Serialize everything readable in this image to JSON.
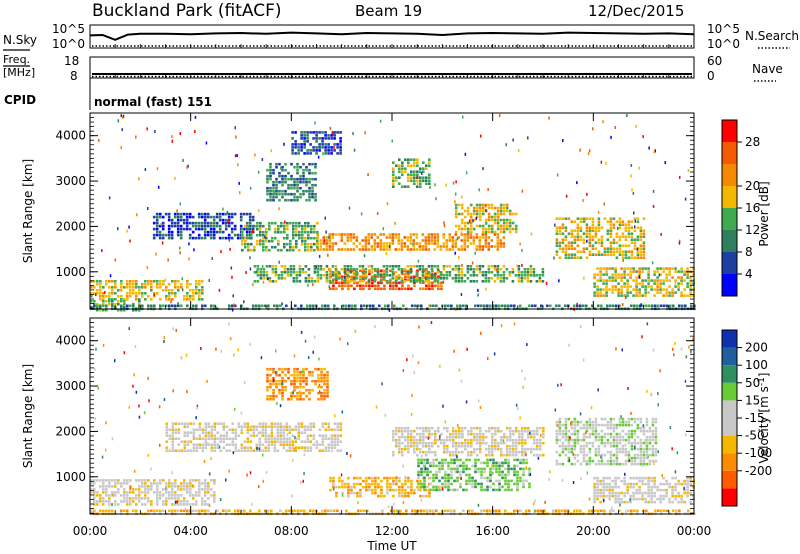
{
  "header": {
    "station": "Buckland Park (fitACF)",
    "beam": "Beam 19",
    "date": "12/Dec/2015"
  },
  "side_labels": {
    "nsky": "N.Sky",
    "nsky_tick_hi": "10^5",
    "nsky_tick_lo": "10^0",
    "nsearch": "N.Search",
    "freq_line1": "Freq.",
    "freq_line2": "[MHz]",
    "freq_tick_hi": "18",
    "freq_tick_lo": "8",
    "nave": "Nave",
    "nave_tick_hi": "60",
    "nave_tick_lo": "0",
    "cpid": "CPID",
    "cpid_value": "normal (fast) 151"
  },
  "colors": {
    "power_scale": [
      "#0000ff",
      "#1e3fa0",
      "#2f7f5f",
      "#3faa4f",
      "#f5b800",
      "#f58a00",
      "#f55a00",
      "#ff0000"
    ],
    "velocity_scale": [
      "#ff0000",
      "#ff5a00",
      "#ff8c00",
      "#f5b800",
      "#c8c8c8",
      "#c8c8c8",
      "#66cc33",
      "#2f8f5f",
      "#1e5fa0",
      "#1030b0"
    ]
  },
  "chart_data": [
    {
      "type": "line",
      "title": "Buckland Park (fitACF) Beam 19 12/Dec/2015",
      "panel": "N.Sky",
      "right_axis": "N.Search",
      "yscale": "log",
      "ylim_label": [
        "10^0",
        "10^5"
      ],
      "x_hours": [
        0,
        0.5,
        1,
        1.5,
        2,
        3,
        4,
        5,
        6,
        7,
        8,
        9,
        10,
        11,
        12,
        13,
        14,
        15,
        16,
        17,
        18,
        19,
        20,
        21,
        22,
        23,
        24
      ],
      "values_exp": [
        2.9,
        3.0,
        1.8,
        3.1,
        3.3,
        3.3,
        3.2,
        3.4,
        3.5,
        3.3,
        3.6,
        3.4,
        3.2,
        3.5,
        3.4,
        3.3,
        3.0,
        3.4,
        3.5,
        3.4,
        3.3,
        3.6,
        3.5,
        3.4,
        3.3,
        3.4,
        3.2
      ]
    },
    {
      "type": "line",
      "panel": "Freq. [MHz]",
      "right_axis": "Nave",
      "ylim": [
        8,
        18
      ],
      "yticks": [
        8,
        18
      ],
      "right_ticks": [
        0,
        60
      ],
      "x_hours": [
        0,
        24
      ],
      "values": [
        8,
        8
      ]
    },
    {
      "type": "heatmap",
      "panel": "Power",
      "colorbar_label": "Power [dB]",
      "colorbar_ticks": [
        4,
        8,
        12,
        16,
        20,
        28
      ],
      "colorbar_range": [
        0,
        32
      ],
      "xlabel": "Time UT",
      "ylabel": "Slant Range [km]",
      "xlim": [
        0,
        24
      ],
      "xticks": [
        "00:00",
        "04:00",
        "08:00",
        "12:00",
        "16:00",
        "20:00",
        "00:00"
      ],
      "ylim": [
        180,
        4500
      ],
      "yticks": [
        1000,
        2000,
        3000,
        4000
      ],
      "regions": [
        {
          "t": [
            0,
            4.5
          ],
          "r": [
            420,
            820
          ],
          "level": 4
        },
        {
          "t": [
            0,
            2.0
          ],
          "r": [
            180,
            380
          ],
          "level": 3
        },
        {
          "t": [
            2.5,
            6.5
          ],
          "r": [
            1750,
            2300
          ],
          "level": 1
        },
        {
          "t": [
            6.0,
            9.0
          ],
          "r": [
            1500,
            2100
          ],
          "level": 3
        },
        {
          "t": [
            7.0,
            9.0
          ],
          "r": [
            2600,
            3400
          ],
          "level": 2
        },
        {
          "t": [
            8.0,
            10.0
          ],
          "r": [
            3600,
            4100
          ],
          "level": 1
        },
        {
          "t": [
            9.0,
            16.5
          ],
          "r": [
            1500,
            1850
          ],
          "level": 5
        },
        {
          "t": [
            14.5,
            17.0
          ],
          "r": [
            1900,
            2500
          ],
          "level": 4
        },
        {
          "t": [
            9.5,
            14.0
          ],
          "r": [
            600,
            1050
          ],
          "level": 6
        },
        {
          "t": [
            6.5,
            18.0
          ],
          "r": [
            800,
            1150
          ],
          "level": 3
        },
        {
          "t": [
            12.0,
            13.5
          ],
          "r": [
            2900,
            3500
          ],
          "level": 3
        },
        {
          "t": [
            18.5,
            22.0
          ],
          "r": [
            1300,
            2200
          ],
          "level": 4
        },
        {
          "t": [
            20.0,
            24.0
          ],
          "r": [
            500,
            1100
          ],
          "level": 4
        },
        {
          "t": [
            0,
            24
          ],
          "r": [
            180,
            280
          ],
          "level": 2
        }
      ]
    },
    {
      "type": "heatmap",
      "panel": "Velocity",
      "colorbar_label": "Velocity [m s^-1]",
      "colorbar_ticks": [
        200,
        100,
        50,
        15,
        -15,
        -50,
        -100,
        -200
      ],
      "xlabel": "Time UT",
      "ylabel": "Slant Range [km]",
      "xlim": [
        0,
        24
      ],
      "xticks": [
        "00:00",
        "04:00",
        "08:00",
        "12:00",
        "16:00",
        "20:00",
        "00:00"
      ],
      "ylim": [
        180,
        4500
      ],
      "yticks": [
        1000,
        2000,
        3000,
        4000
      ],
      "regions": [
        {
          "t": [
            0,
            5.0
          ],
          "r": [
            420,
            950
          ],
          "level": 4
        },
        {
          "t": [
            3.0,
            10.0
          ],
          "r": [
            1550,
            2200
          ],
          "level": 4
        },
        {
          "t": [
            7.0,
            9.5
          ],
          "r": [
            2700,
            3400
          ],
          "level": 2
        },
        {
          "t": [
            9.5,
            13.5
          ],
          "r": [
            600,
            1000
          ],
          "level": 3
        },
        {
          "t": [
            13.0,
            17.5
          ],
          "r": [
            700,
            1400
          ],
          "level": 6
        },
        {
          "t": [
            12.0,
            18.0
          ],
          "r": [
            1500,
            2100
          ],
          "level": 4
        },
        {
          "t": [
            18.5,
            22.5
          ],
          "r": [
            1300,
            2300
          ],
          "level": 5
        },
        {
          "t": [
            20.0,
            24.0
          ],
          "r": [
            450,
            1000
          ],
          "level": 4
        },
        {
          "t": [
            0,
            24
          ],
          "r": [
            180,
            280
          ],
          "level": 3
        }
      ]
    }
  ]
}
